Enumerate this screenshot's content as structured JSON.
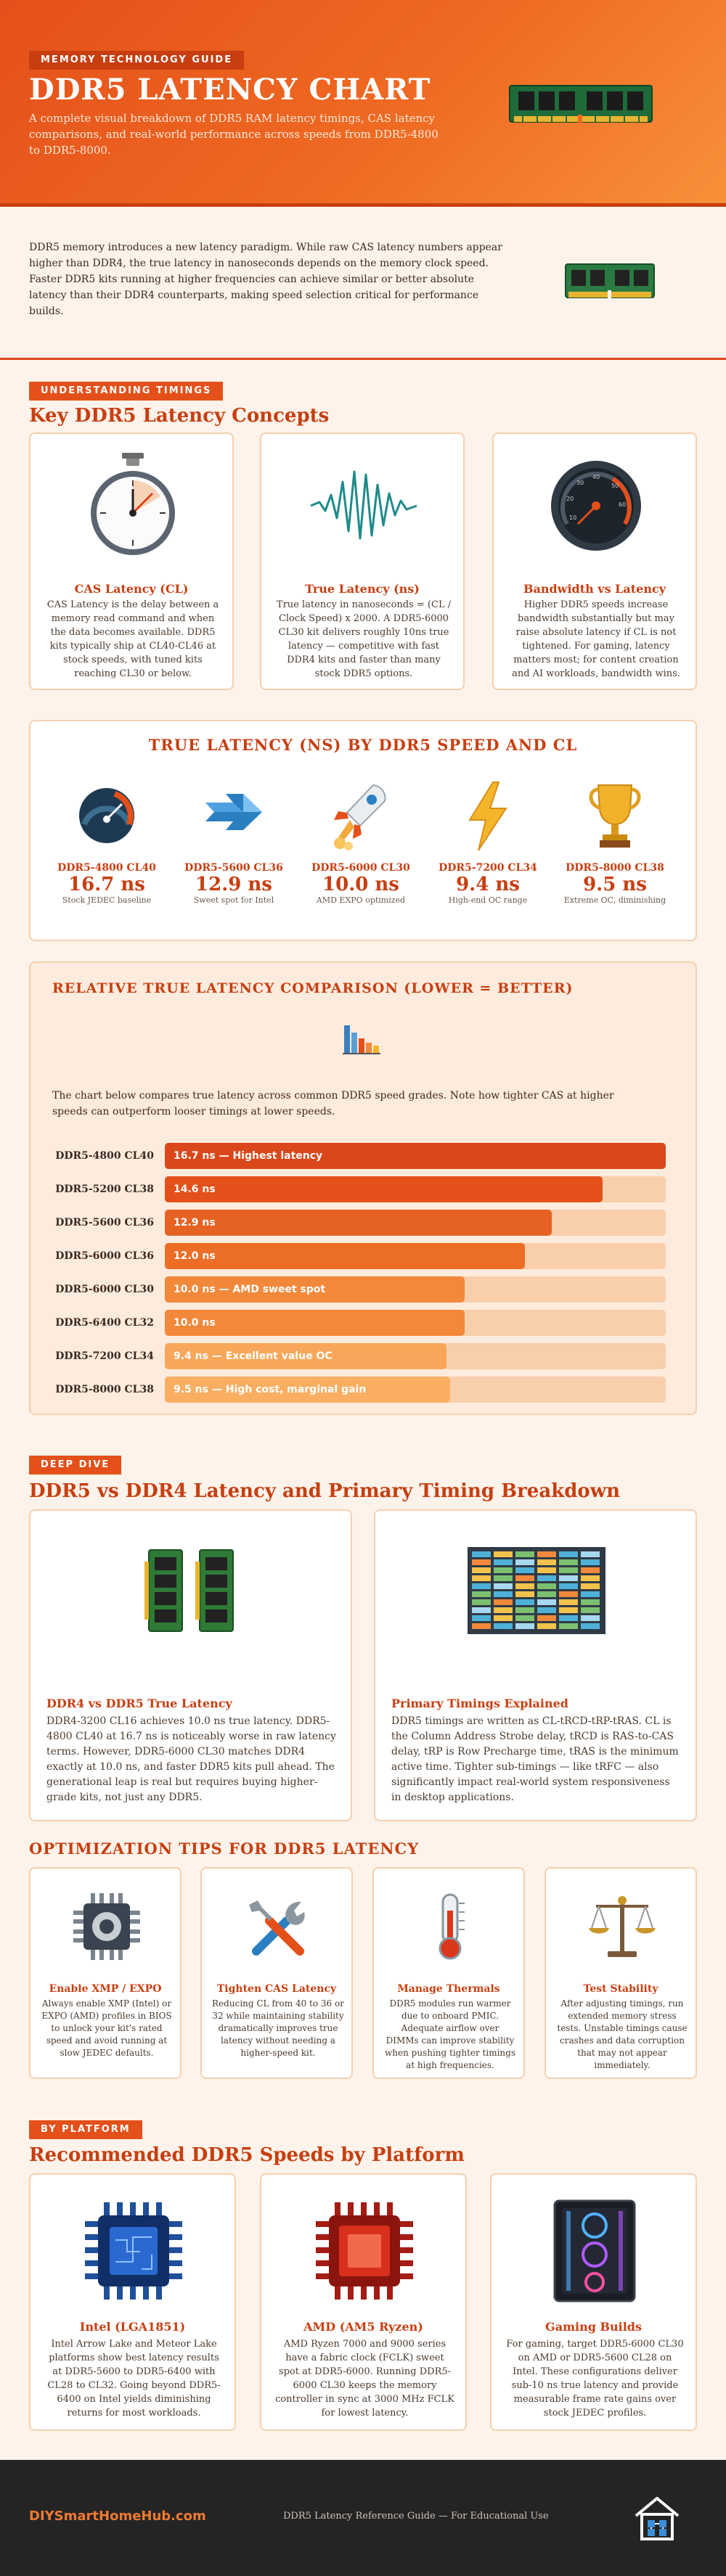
{
  "header": {
    "tag": "MEMORY TECHNOLOGY GUIDE",
    "title": "DDR5 LATENCY CHART",
    "subtitle": "A complete visual breakdown of DDR5 RAM latency timings, CAS latency comparisons, and real-world performance across speeds from DDR5-4800 to DDR5-8000."
  },
  "intro": {
    "text": "DDR5 memory introduces a new latency paradigm. While raw CAS latency numbers appear higher than DDR4, the true latency in nanoseconds depends on the memory clock speed. Faster DDR5 kits running at higher frequencies can achieve similar or better absolute latency than their DDR4 counterparts, making speed selection critical for performance builds."
  },
  "concepts": {
    "tag": "UNDERSTANDING TIMINGS",
    "title": "Key DDR5 Latency Concepts",
    "cards": [
      {
        "icon": "stopwatch-icon",
        "title": "CAS Latency (CL)",
        "text": "CAS Latency is the delay between a memory read command and when the data becomes available. DDR5 kits typically ship at CL40-CL46 at stock speeds, with tuned kits reaching CL30 or below."
      },
      {
        "icon": "waveform-icon",
        "title": "True Latency (ns)",
        "text": "True latency in nanoseconds = (CL / Clock Speed) x 2000. A DDR5-6000 CL30 kit delivers roughly 10ns true latency — competitive with fast DDR4 kits and faster than many stock DDR5 options."
      },
      {
        "icon": "speedometer-icon",
        "title": "Bandwidth vs Latency",
        "text": "Higher DDR5 speeds increase bandwidth substantially but may raise absolute latency if CL is not tightened. For gaming, latency matters most; for content creation and AI workloads, bandwidth wins."
      }
    ]
  },
  "true_latency": {
    "title": "TRUE LATENCY (NS) BY DDR5 SPEED AND CL",
    "items": [
      {
        "icon": "gauge-icon",
        "label": "DDR5-4800 CL40",
        "value": "16.7 ns",
        "note": "Stock JEDEC baseline"
      },
      {
        "icon": "arrow-icon",
        "label": "DDR5-5600 CL36",
        "value": "12.9 ns",
        "note": "Sweet spot for Intel"
      },
      {
        "icon": "rocket-icon",
        "label": "DDR5-6000 CL30",
        "value": "10.0 ns",
        "note": "AMD EXPO optimized"
      },
      {
        "icon": "lightning-icon",
        "label": "DDR5-7200 CL34",
        "value": "9.4 ns",
        "note": "High-end OC range"
      },
      {
        "icon": "trophy-icon",
        "label": "DDR5-8000 CL38",
        "value": "9.5 ns",
        "note": "Extreme OC, diminishing"
      }
    ]
  },
  "comparison": {
    "title": "RELATIVE TRUE LATENCY COMPARISON (LOWER = BETTER)",
    "text": "The chart below compares true latency across common DDR5 speed grades. Note how tighter CAS at higher speeds can outperform looser timings at lower speeds.",
    "bars": [
      {
        "label": "DDR5-4800 CL40",
        "text": "16.7 ns — Highest latency",
        "ns": 16.7,
        "color": "#d9471a"
      },
      {
        "label": "DDR5-5200 CL38",
        "text": "14.6 ns",
        "ns": 14.6,
        "color": "#e4501a"
      },
      {
        "label": "DDR5-5600 CL36",
        "text": "12.9 ns",
        "ns": 12.9,
        "color": "#e66222"
      },
      {
        "label": "DDR5-6000 CL36",
        "text": "12.0 ns",
        "ns": 12.0,
        "color": "#ec6e26"
      },
      {
        "label": "DDR5-6000 CL30",
        "text": "10.0 ns — AMD sweet spot",
        "ns": 10.0,
        "color": "#f2883a"
      },
      {
        "label": "DDR5-6400 CL32",
        "text": "10.0 ns",
        "ns": 10.0,
        "color": "#f2883a"
      },
      {
        "label": "DDR5-7200 CL34",
        "text": "9.4 ns — Excellent value OC",
        "ns": 9.4,
        "color": "#f8a75a"
      },
      {
        "label": "DDR5-8000 CL38",
        "text": "9.5 ns — High cost, marginal gain",
        "ns": 9.5,
        "color": "#f9ae62"
      }
    ]
  },
  "deep_dive": {
    "tag": "DEEP DIVE",
    "title": "DDR5 vs DDR4 Latency and Primary Timing Breakdown",
    "cards": [
      {
        "icon": "ram-modules-icon",
        "title": "DDR4 vs DDR5 True Latency",
        "text": "DDR4-3200 CL16 achieves 10.0 ns true latency. DDR5-4800 CL40 at 16.7 ns is noticeably worse in raw latency terms. However, DDR5-6000 CL30 matches DDR4 exactly at 10.0 ns, and faster DDR5 kits pull ahead. The generational leap is real but requires buying higher-grade kits, not just any DDR5."
      },
      {
        "icon": "timing-grid-icon",
        "title": "Primary Timings Explained",
        "text": "DDR5 timings are written as CL-tRCD-tRP-tRAS. CL is the Column Address Strobe delay, tRCD is RAS-to-CAS delay, tRP is Row Precharge time, tRAS is the minimum active time. Tighter sub-timings — like tRFC — also significantly impact real-world system responsiveness in desktop applications."
      }
    ]
  },
  "tips": {
    "title": "OPTIMIZATION TIPS FOR DDR5 LATENCY",
    "cards": [
      {
        "icon": "cpu-chip-icon",
        "title": "Enable XMP / EXPO",
        "text": "Always enable XMP (Intel) or EXPO (AMD) profiles in BIOS to unlock your kit's rated speed and avoid running at slow JEDEC defaults."
      },
      {
        "icon": "tools-icon",
        "title": "Tighten CAS Latency",
        "text": "Reducing CL from 40 to 36 or 32 while maintaining stability dramatically improves true latency without needing a higher-speed kit."
      },
      {
        "icon": "thermometer-icon",
        "title": "Manage Thermals",
        "text": "DDR5 modules run warmer due to onboard PMIC. Adequate airflow over DIMMs can improve stability when pushing tighter timings at high frequencies."
      },
      {
        "icon": "balance-scale-icon",
        "title": "Test Stability",
        "text": "After adjusting timings, run extended memory stress tests. Unstable timings cause crashes and data corruption that may not appear immediately."
      }
    ]
  },
  "platform": {
    "tag": "BY PLATFORM",
    "title": "Recommended DDR5 Speeds by Platform",
    "cards": [
      {
        "icon": "intel-chip-icon",
        "title": "Intel (LGA1851)",
        "text": "Intel Arrow Lake and Meteor Lake platforms show best latency results at DDR5-5600 to DDR5-6400 with CL28 to CL32. Going beyond DDR5-6400 on Intel yields diminishing returns for most workloads."
      },
      {
        "icon": "amd-chip-icon",
        "title": "AMD (AM5 Ryzen)",
        "text": "AMD Ryzen 7000 and 9000 series have a fabric clock (FCLK) sweet spot at DDR5-6000. Running DDR5-6000 CL30 keeps the memory controller in sync at 3000 MHz FCLK for lowest latency."
      },
      {
        "icon": "gaming-pc-icon",
        "title": "Gaming Builds",
        "text": "For gaming, target DDR5-6000 CL30 on AMD or DDR5-5600 CL28 on Intel. These configurations deliver sub-10 ns true latency and provide measurable frame rate gains over stock JEDEC profiles."
      }
    ]
  },
  "footer": {
    "brand": "DIYSmartHomeHub.com",
    "note": "DDR5 Latency Reference Guide — For Educational Use"
  }
}
